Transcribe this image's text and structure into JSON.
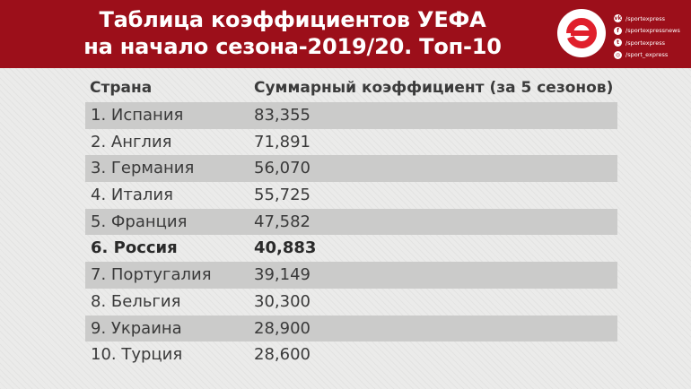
{
  "header": {
    "title_line1": "Таблица коэффициентов УЕФА",
    "title_line2": "на начало сезона-2019/20. Топ-10",
    "brand_color": "#9c0f1a",
    "socials": [
      {
        "icon": "vk-icon",
        "glyph": "vk",
        "handle": "/sportexpress"
      },
      {
        "icon": "facebook-icon",
        "glyph": "f",
        "handle": "/sportexpressnews"
      },
      {
        "icon": "twitter-icon",
        "glyph": "t",
        "handle": "/sportexpress"
      },
      {
        "icon": "instagram-icon",
        "glyph": "◎",
        "handle": "/sport_express"
      }
    ]
  },
  "table": {
    "col_country": "Страна",
    "col_coef": "Суммарный коэффициент (за 5 сезонов)",
    "rows": [
      {
        "country": "1. Испания",
        "value": "83,355",
        "shaded": true,
        "bold": false
      },
      {
        "country": "2. Англия",
        "value": "71,891",
        "shaded": false,
        "bold": false
      },
      {
        "country": "3. Германия",
        "value": "56,070",
        "shaded": true,
        "bold": false
      },
      {
        "country": "4. Италия",
        "value": "55,725",
        "shaded": false,
        "bold": false
      },
      {
        "country": "5. Франция",
        "value": "47,582",
        "shaded": true,
        "bold": false
      },
      {
        "country": "6. Россия",
        "value": "40,883",
        "shaded": false,
        "bold": true
      },
      {
        "country": "7. Португалия",
        "value": "39,149",
        "shaded": true,
        "bold": false
      },
      {
        "country": "8. Бельгия",
        "value": "30,300",
        "shaded": false,
        "bold": false
      },
      {
        "country": "9. Украина",
        "value": "28,900",
        "shaded": true,
        "bold": false
      },
      {
        "country": "10. Турция",
        "value": "28,600",
        "shaded": false,
        "bold": false
      }
    ]
  }
}
